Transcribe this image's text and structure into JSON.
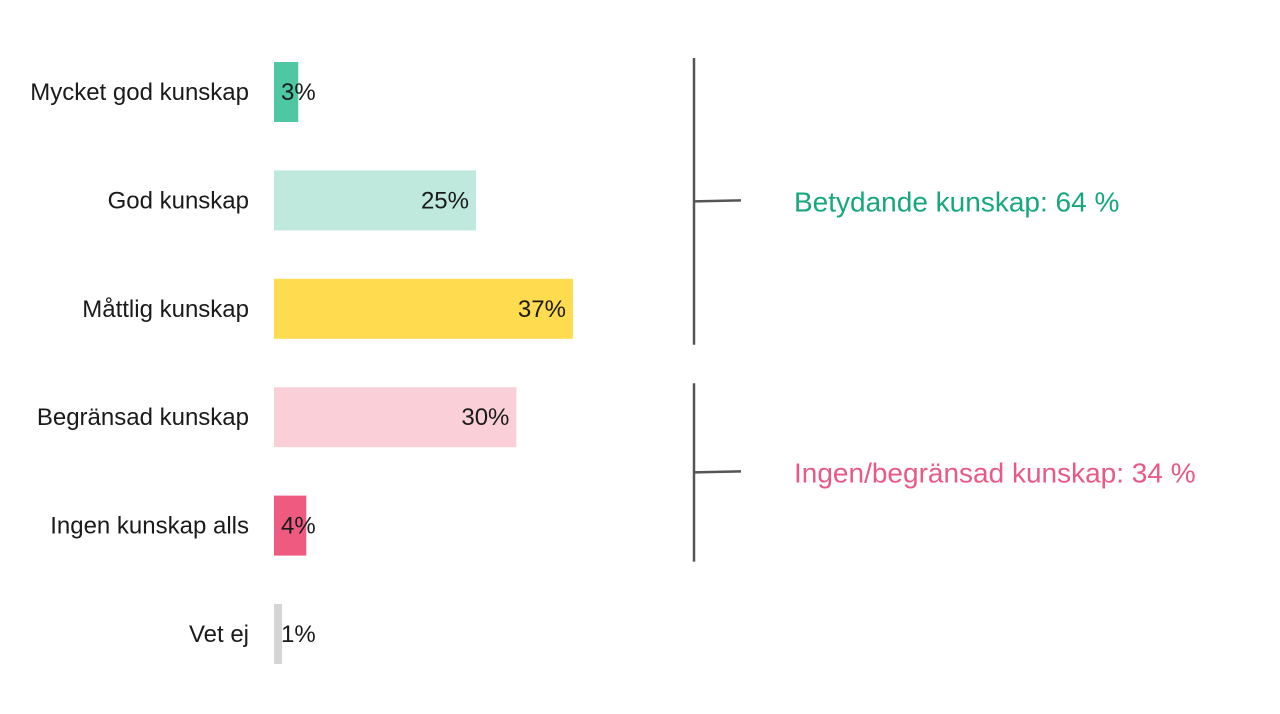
{
  "chart_data": {
    "type": "bar",
    "orientation": "horizontal",
    "title": "",
    "xlabel": "",
    "ylabel": "",
    "xlim": [
      0,
      100
    ],
    "grid": false,
    "categories": [
      "Mycket god kunskap",
      "God kunskap",
      "Måttlig kunskap",
      "Begränsad kunskap",
      "Ingen kunskap alls",
      "Vet ej"
    ],
    "values": [
      3,
      25,
      37,
      30,
      4,
      1
    ],
    "value_labels": [
      "3%",
      "25%",
      "37%",
      "30%",
      "4%",
      "1%"
    ],
    "colors": [
      "#4ec7a2",
      "#bfe9dd",
      "#ffdb4f",
      "#fbcfd8",
      "#ef5a80",
      "#d5d5d5"
    ],
    "groups": [
      {
        "label": "Betydande kunskap: 64 %",
        "color": "#17a77c",
        "from_index": 0,
        "to_index": 2
      },
      {
        "label": "Ingen/begränsad kunskap: 34 %",
        "color": "#e85a85",
        "from_index": 3,
        "to_index": 4
      }
    ]
  }
}
